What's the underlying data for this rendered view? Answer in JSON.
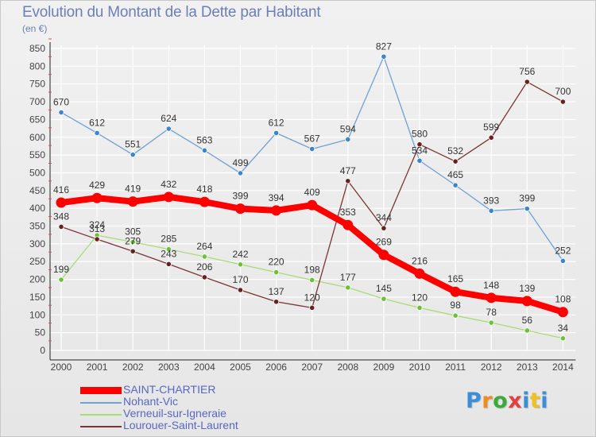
{
  "title": "Evolution du Montant de la Dette par Habitant",
  "subtitle": "(en €)",
  "logo": {
    "text": "Proxiti",
    "letter_colors": [
      "#3a8fd6",
      "#f08a24",
      "#3aaa3a",
      "#e04040",
      "#3a8fd6",
      "#f0c020",
      "#3a8fd6"
    ]
  },
  "chart_data": {
    "type": "line",
    "title": "Evolution du Montant de la Dette par Habitant",
    "subtitle": "(en €)",
    "xlabel": "",
    "ylabel": "",
    "x": [
      "2000",
      "2001",
      "2002",
      "2003",
      "2004",
      "2005",
      "2006",
      "2007",
      "2008",
      "2009",
      "2010",
      "2011",
      "2012",
      "2013",
      "2014"
    ],
    "ylim": [
      0,
      850
    ],
    "yticks": [
      0,
      50,
      100,
      150,
      200,
      250,
      300,
      350,
      400,
      450,
      500,
      550,
      600,
      650,
      700,
      750,
      800,
      850
    ],
    "grid": true,
    "legend_position": "bottom-left",
    "series": [
      {
        "name": "SAINT-CHARTIER",
        "color": "#ff0000",
        "marker": "#ff0000",
        "bold": true,
        "values": [
          416,
          429,
          419,
          432,
          418,
          399,
          394,
          409,
          353,
          269,
          216,
          165,
          148,
          139,
          108
        ]
      },
      {
        "name": "Nohant-Vic",
        "color": "#6fa0d8",
        "marker": "#3a86cc",
        "bold": false,
        "values": [
          670,
          612,
          551,
          624,
          563,
          499,
          612,
          567,
          594,
          827,
          534,
          465,
          393,
          399,
          252
        ]
      },
      {
        "name": "Verneuil-sur-Igneraie",
        "color": "#a8dc78",
        "marker": "#6cc03a",
        "bold": false,
        "values": [
          199,
          324,
          305,
          285,
          264,
          242,
          220,
          198,
          177,
          145,
          120,
          98,
          78,
          56,
          34
        ]
      },
      {
        "name": "Lourouer-Saint-Laurent",
        "color": "#7a3535",
        "marker": "#6b2020",
        "bold": false,
        "values": [
          348,
          313,
          279,
          243,
          206,
          170,
          137,
          120,
          477,
          344,
          580,
          532,
          599,
          756,
          700
        ]
      }
    ]
  }
}
